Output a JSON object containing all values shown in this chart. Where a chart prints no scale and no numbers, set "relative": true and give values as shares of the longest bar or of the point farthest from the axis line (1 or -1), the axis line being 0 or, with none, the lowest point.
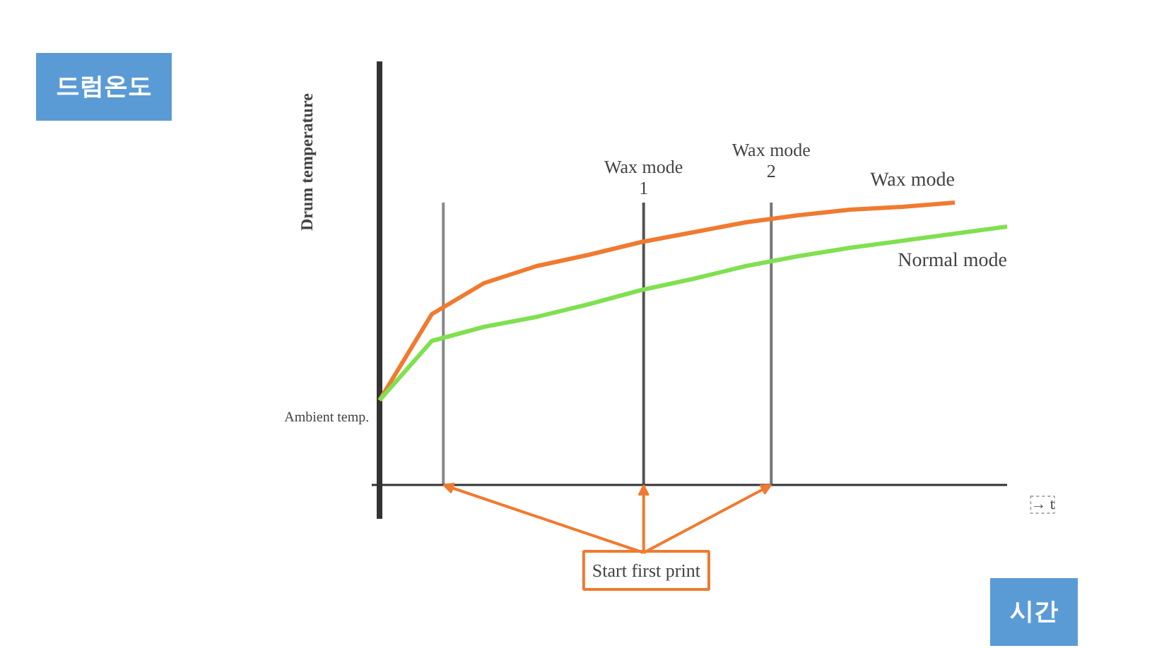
{
  "chart_data": {
    "type": "line",
    "relative": true,
    "categories": [
      null,
      null,
      null,
      null,
      null,
      null,
      null,
      null,
      null,
      null,
      null,
      null,
      null
    ],
    "xlabel": "→ t",
    "ylabel": "Drum temperature",
    "series": [
      {
        "name": "Wax mode",
        "color": "#f07a30",
        "values": [
          0.3,
          0.605,
          0.715,
          0.775,
          0.815,
          0.86,
          0.895,
          0.93,
          0.955,
          0.975,
          0.985,
          1.0,
          null
        ]
      },
      {
        "name": "Normal mode",
        "color": "#80e050",
        "values": [
          0.3,
          0.51,
          0.56,
          0.595,
          0.64,
          0.69,
          0.73,
          0.775,
          0.81,
          0.84,
          0.865,
          0.89,
          0.915
        ]
      }
    ],
    "annotations": [
      "드럼온도",
      "시간",
      "Ambient temp.",
      "Start first print",
      "Wax mode\n1",
      "Wax mode\n2"
    ]
  }
}
